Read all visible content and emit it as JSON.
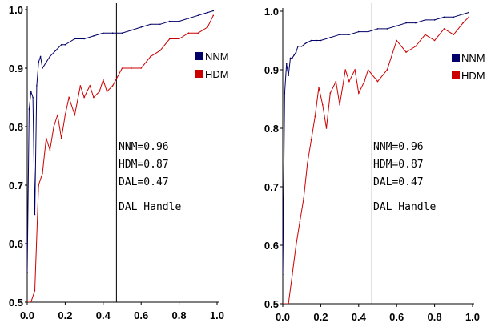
{
  "chart_data": [
    {
      "type": "line",
      "title": "",
      "xlabel": "",
      "ylabel": "",
      "xlim": [
        0.0,
        1.0
      ],
      "ylim": [
        0.5,
        1.0
      ],
      "x_ticks": [
        "0.0",
        "0.2",
        "0.4",
        "0.6",
        "0.8",
        "1.0"
      ],
      "y_ticks": [
        "0.5",
        "0.6",
        "0.7",
        "0.8",
        "0.9",
        "1.0"
      ],
      "grid": false,
      "legend_position": "right",
      "threshold_x": 0.47,
      "annotations": [
        "NNM=0.96",
        "HDM=0.87",
        "DAL=0.47",
        "DAL Handle"
      ],
      "series": [
        {
          "name": "NNM",
          "color": "#000066",
          "x": [
            0.0,
            0.01,
            0.02,
            0.03,
            0.04,
            0.05,
            0.06,
            0.07,
            0.08,
            0.1,
            0.12,
            0.15,
            0.18,
            0.2,
            0.25,
            0.3,
            0.35,
            0.4,
            0.45,
            0.5,
            0.55,
            0.6,
            0.65,
            0.7,
            0.75,
            0.8,
            0.85,
            0.9,
            0.95,
            0.98
          ],
          "y": [
            0.55,
            0.83,
            0.86,
            0.85,
            0.65,
            0.87,
            0.91,
            0.92,
            0.9,
            0.91,
            0.92,
            0.93,
            0.94,
            0.94,
            0.95,
            0.95,
            0.955,
            0.96,
            0.96,
            0.96,
            0.965,
            0.97,
            0.975,
            0.975,
            0.98,
            0.98,
            0.985,
            0.99,
            0.995,
            0.998
          ]
        },
        {
          "name": "HDM",
          "color": "#cc0000",
          "x": [
            0.0,
            0.02,
            0.04,
            0.06,
            0.08,
            0.1,
            0.12,
            0.14,
            0.16,
            0.18,
            0.2,
            0.22,
            0.25,
            0.28,
            0.3,
            0.33,
            0.35,
            0.38,
            0.4,
            0.42,
            0.45,
            0.5,
            0.55,
            0.6,
            0.65,
            0.7,
            0.75,
            0.8,
            0.85,
            0.9,
            0.95,
            0.98
          ],
          "y": [
            0.5,
            0.5,
            0.52,
            0.7,
            0.72,
            0.78,
            0.76,
            0.8,
            0.82,
            0.78,
            0.82,
            0.85,
            0.82,
            0.87,
            0.85,
            0.87,
            0.85,
            0.86,
            0.88,
            0.86,
            0.87,
            0.9,
            0.9,
            0.9,
            0.92,
            0.93,
            0.95,
            0.95,
            0.96,
            0.96,
            0.97,
            0.99
          ]
        }
      ]
    },
    {
      "type": "line",
      "title": "",
      "xlabel": "",
      "ylabel": "",
      "xlim": [
        0.0,
        1.0
      ],
      "ylim": [
        0.5,
        1.0
      ],
      "x_ticks": [
        "0.0",
        "0.2",
        "0.4",
        "0.6",
        "0.8",
        "1.0"
      ],
      "y_ticks": [
        "0.5",
        "0.6",
        "0.7",
        "0.8",
        "0.9",
        "1.0"
      ],
      "grid": false,
      "legend_position": "right",
      "threshold_x": 0.47,
      "annotations": [
        "NNM=0.96",
        "HDM=0.87",
        "DAL=0.47",
        "DAL Handle"
      ],
      "series": [
        {
          "name": "NNM",
          "color": "#000066",
          "x": [
            0.0,
            0.01,
            0.02,
            0.03,
            0.04,
            0.05,
            0.06,
            0.07,
            0.08,
            0.1,
            0.12,
            0.15,
            0.18,
            0.2,
            0.25,
            0.3,
            0.35,
            0.4,
            0.45,
            0.5,
            0.55,
            0.6,
            0.65,
            0.7,
            0.75,
            0.8,
            0.85,
            0.9,
            0.95,
            0.98
          ],
          "y": [
            0.55,
            0.86,
            0.91,
            0.89,
            0.92,
            0.92,
            0.925,
            0.93,
            0.94,
            0.94,
            0.945,
            0.95,
            0.95,
            0.95,
            0.955,
            0.96,
            0.96,
            0.965,
            0.965,
            0.97,
            0.97,
            0.975,
            0.98,
            0.98,
            0.985,
            0.985,
            0.99,
            0.99,
            0.995,
            0.998
          ]
        },
        {
          "name": "HDM",
          "color": "#cc0000",
          "x": [
            0.0,
            0.03,
            0.05,
            0.07,
            0.09,
            0.11,
            0.13,
            0.15,
            0.17,
            0.19,
            0.21,
            0.23,
            0.25,
            0.28,
            0.3,
            0.33,
            0.35,
            0.38,
            0.4,
            0.43,
            0.45,
            0.5,
            0.55,
            0.6,
            0.65,
            0.7,
            0.75,
            0.8,
            0.85,
            0.9,
            0.95,
            0.98
          ],
          "y": [
            0.5,
            0.5,
            0.55,
            0.6,
            0.64,
            0.68,
            0.74,
            0.78,
            0.82,
            0.87,
            0.84,
            0.8,
            0.86,
            0.88,
            0.84,
            0.9,
            0.88,
            0.9,
            0.86,
            0.88,
            0.9,
            0.88,
            0.9,
            0.95,
            0.93,
            0.94,
            0.96,
            0.95,
            0.97,
            0.96,
            0.98,
            0.99
          ]
        }
      ]
    }
  ]
}
